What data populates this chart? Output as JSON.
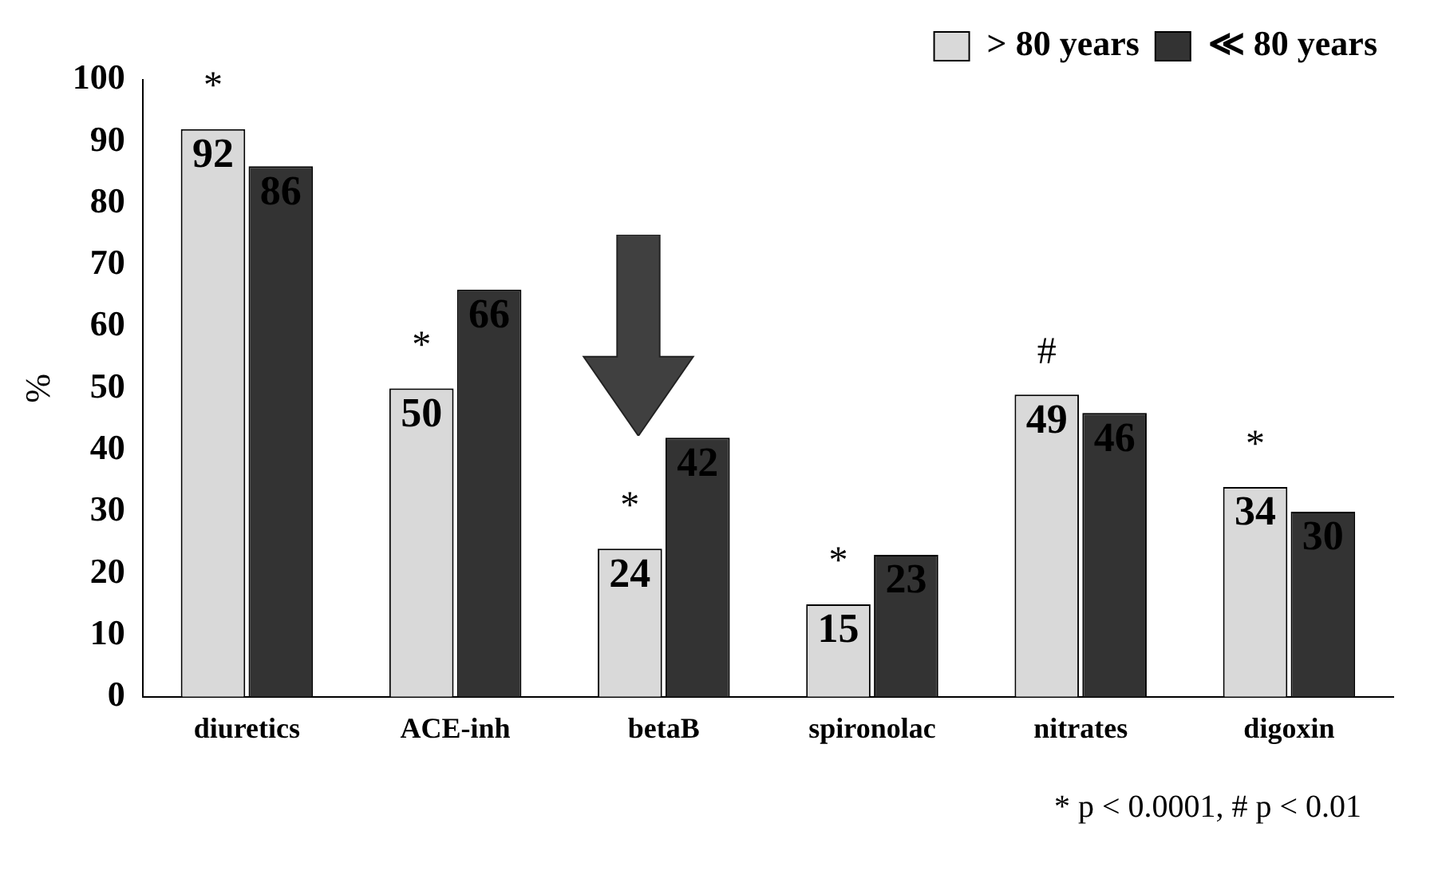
{
  "chart_data": {
    "type": "bar",
    "ylabel": "%",
    "categories": [
      "diuretics",
      "ACE-inh",
      "betaB",
      "spironolac",
      "nitrates",
      "digoxin"
    ],
    "series": [
      {
        "name": "> 80 years",
        "color": "#d9d9d9",
        "values": [
          92,
          50,
          24,
          15,
          49,
          34
        ]
      },
      {
        "name": "≪ 80 years",
        "color": "#333333",
        "values": [
          86,
          66,
          42,
          23,
          46,
          30
        ]
      }
    ],
    "ylim": [
      0,
      100
    ],
    "yticks": [
      0,
      10,
      20,
      30,
      40,
      50,
      60,
      70,
      80,
      90,
      100
    ],
    "grid": false,
    "legend": "top right",
    "data_labels": true,
    "annotations": [
      {
        "text": "*",
        "x": "diuretics",
        "y": 92
      },
      {
        "text": "*",
        "x": "ACE-inh",
        "y": 50
      },
      {
        "text": "*",
        "x": "betaB",
        "y": 24
      },
      {
        "text": "*",
        "x": "spironolac",
        "y": 15
      },
      {
        "text": "#",
        "x": "nitrates",
        "y": 49
      },
      {
        "text": "*",
        "x": "digoxin",
        "y": 34
      },
      "* p < 0.0001, # p < 0.01"
    ]
  }
}
